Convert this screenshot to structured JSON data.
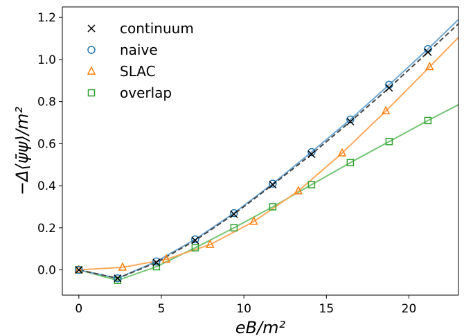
{
  "chart_data": {
    "type": "line",
    "title": "",
    "xlabel": "eB/m²",
    "ylabel": "−Δ⟨ψ̄ψ⟩/m²",
    "xlim": [
      -1,
      23
    ],
    "ylim": [
      -0.12,
      1.25
    ],
    "xticks": [
      0,
      5,
      10,
      15,
      20
    ],
    "yticks": [
      0.0,
      0.2,
      0.4,
      0.6,
      0.8,
      1.0,
      1.2
    ],
    "xtick_labels": [
      "0",
      "5",
      "10",
      "15",
      "20"
    ],
    "ytick_labels": [
      "0.0",
      "0.2",
      "0.4",
      "0.6",
      "0.8",
      "1.0",
      "1.2"
    ],
    "grid": false,
    "legend_position": "top-left",
    "series": [
      {
        "name": "continuum",
        "marker": "x",
        "color": "#000000",
        "line_color": "#444444",
        "line_style": "dashed",
        "x": [
          0,
          2.35,
          4.7,
          7.05,
          9.4,
          11.75,
          14.1,
          16.45,
          18.8,
          21.15
        ],
        "y": [
          0.0,
          -0.04,
          0.035,
          0.14,
          0.265,
          0.405,
          0.55,
          0.705,
          0.865,
          1.035
        ],
        "line_x": [
          0,
          2.35,
          4.7,
          7.05,
          9.4,
          11.75,
          14.1,
          16.45,
          18.8,
          21.15,
          23
        ],
        "line_y": [
          0.0,
          -0.04,
          0.035,
          0.14,
          0.265,
          0.405,
          0.55,
          0.705,
          0.865,
          1.035,
          1.17
        ]
      },
      {
        "name": "naive",
        "marker": "circle",
        "color": "#1f77b4",
        "line_color": "#6fa8d6",
        "line_style": "solid",
        "x": [
          0,
          2.35,
          4.7,
          7.05,
          9.4,
          11.75,
          14.1,
          16.45,
          18.8,
          21.15
        ],
        "y": [
          0.0,
          -0.04,
          0.04,
          0.145,
          0.27,
          0.41,
          0.56,
          0.715,
          0.88,
          1.05
        ],
        "line_x": [
          0,
          2.35,
          4.7,
          7.05,
          9.4,
          11.75,
          14.1,
          16.45,
          18.8,
          21.15,
          23
        ],
        "line_y": [
          0.0,
          -0.04,
          0.04,
          0.145,
          0.27,
          0.41,
          0.56,
          0.715,
          0.88,
          1.05,
          1.19
        ]
      },
      {
        "name": "SLAC",
        "marker": "triangle",
        "color": "#ff7f0e",
        "line_color": "#ffa85a",
        "line_style": "solid",
        "x": [
          0,
          2.65,
          5.3,
          7.95,
          10.6,
          13.3,
          15.95,
          18.6,
          21.25
        ],
        "y": [
          0.0,
          0.012,
          0.05,
          0.12,
          0.23,
          0.375,
          0.555,
          0.755,
          0.965
        ],
        "line_x": [
          0,
          2.65,
          5.3,
          7.95,
          10.6,
          13.3,
          15.95,
          18.6,
          21.25,
          23
        ],
        "line_y": [
          0.0,
          0.012,
          0.05,
          0.12,
          0.23,
          0.375,
          0.555,
          0.755,
          0.965,
          1.105
        ]
      },
      {
        "name": "overlap",
        "marker": "square",
        "color": "#2ca02c",
        "line_color": "#74c474",
        "line_style": "solid",
        "x": [
          0,
          2.35,
          4.7,
          7.05,
          9.4,
          11.75,
          14.1,
          16.45,
          18.8,
          21.15
        ],
        "y": [
          0.0,
          -0.05,
          0.015,
          0.105,
          0.2,
          0.3,
          0.405,
          0.51,
          0.61,
          0.71
        ],
        "line_x": [
          0,
          2.35,
          4.7,
          7.05,
          9.4,
          11.75,
          14.1,
          16.45,
          18.8,
          21.15,
          23
        ],
        "line_y": [
          0.0,
          -0.05,
          0.015,
          0.105,
          0.2,
          0.3,
          0.405,
          0.51,
          0.61,
          0.71,
          0.785
        ]
      }
    ]
  }
}
